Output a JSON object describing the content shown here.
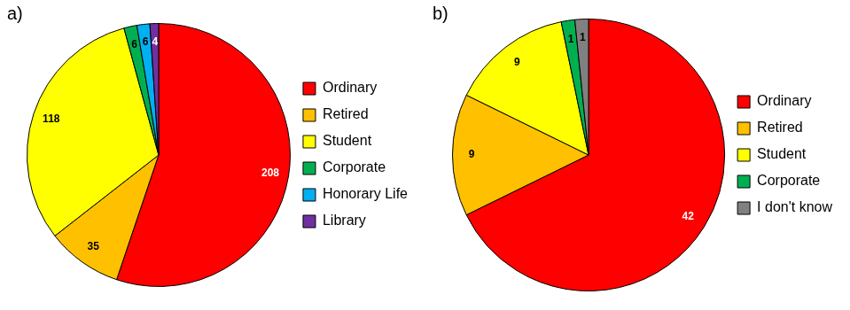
{
  "chart_data": [
    {
      "type": "pie",
      "title": "a)",
      "categories": [
        "Ordinary",
        "Retired",
        "Student",
        "Corporate",
        "Honorary Life",
        "Library"
      ],
      "values": [
        208,
        35,
        118,
        6,
        6,
        4
      ],
      "colors": [
        "#ff0000",
        "#ffc000",
        "#ffff00",
        "#00b050",
        "#00b0f0",
        "#7030a0"
      ],
      "data_labels": true,
      "legend": "right"
    },
    {
      "type": "pie",
      "title": "b)",
      "categories": [
        "Ordinary",
        "Retired",
        "Student",
        "Corporate",
        "I don't know"
      ],
      "values": [
        42,
        9,
        9,
        1,
        1
      ],
      "colors": [
        "#ff0000",
        "#ffc000",
        "#ffff00",
        "#00b050",
        "#808080"
      ],
      "data_labels": true,
      "legend": "right"
    }
  ]
}
